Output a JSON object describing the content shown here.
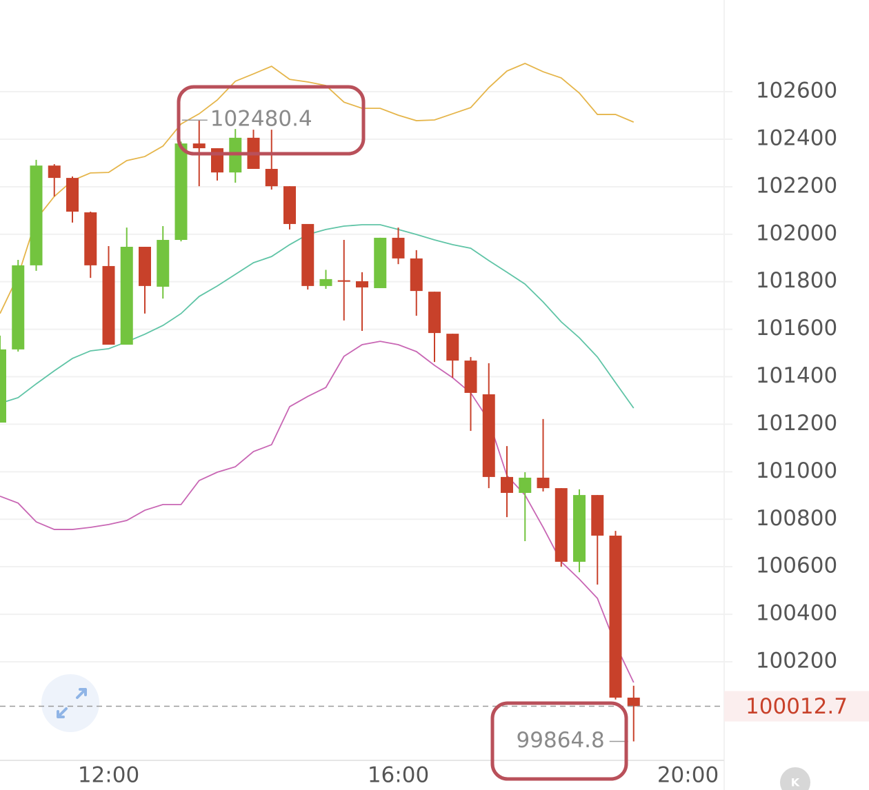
{
  "chart_data": {
    "type": "candlestick",
    "x": [
      10.5,
      10.75,
      11,
      11.25,
      11.5,
      11.75,
      12,
      12.25,
      12.5,
      12.75,
      13,
      13.25,
      13.5,
      13.75,
      14,
      14.25,
      14.5,
      14.75,
      15,
      15.25,
      15.5,
      15.75,
      16,
      16.25,
      16.5,
      16.75,
      17,
      17.25,
      17.5,
      17.75,
      18,
      18.25,
      18.5,
      18.75,
      19,
      19.25
    ],
    "open": [
      101207,
      101515,
      101869,
      102289,
      102237,
      102092,
      101866,
      101535,
      101947,
      101779,
      101976,
      102382,
      102362,
      102260,
      102406,
      102275,
      102202,
      102043,
      101782,
      101806,
      101802,
      101773,
      101985,
      101898,
      101758,
      101581,
      101468,
      101326,
      100978,
      100911,
      100975,
      100931,
      100621,
      100902,
      100731,
      100049
    ],
    "high": [
      101573,
      101892,
      102313,
      102295,
      102243,
      102095,
      101950,
      102028,
      101947,
      102034,
      102390,
      102480.4,
      102362,
      102443,
      102440,
      102440,
      102202,
      102043,
      101850,
      101976,
      101840,
      101985,
      102028,
      101933,
      101758,
      101581,
      101483,
      101457,
      101108,
      100998,
      101222,
      100931,
      100926,
      100902,
      100751,
      100099
    ],
    "low": [
      101207,
      101506,
      101846,
      102159,
      102049,
      101816,
      101535,
      101535,
      101666,
      101729,
      101970,
      102202,
      102226,
      102217,
      102275,
      102188,
      102020,
      101767,
      101770,
      101637,
      101593,
      101773,
      101874,
      101657,
      101462,
      101396,
      101172,
      100931,
      100809,
      100708,
      100917,
      100600,
      100577,
      100525,
      100041,
      99864.8
    ],
    "close": [
      101515,
      101869,
      102289,
      102237,
      102095,
      101869,
      101535,
      101947,
      101782,
      101976,
      102382,
      102362,
      102260,
      102406,
      102275,
      102202,
      102043,
      101782,
      101811,
      101800,
      101776,
      101985,
      101898,
      101761,
      101584,
      101468,
      101332,
      100978,
      100911,
      100975,
      100931,
      100621,
      100902,
      100731,
      100049,
      100012.7
    ],
    "up_color": "#73c43f",
    "down_color": "#c8412a",
    "bands": [
      {
        "color": "#e5b54a",
        "values": [
          101666,
          101825,
          102063,
          102159,
          102226,
          102258,
          102260,
          102310,
          102327,
          102371,
          102464,
          102507,
          102565,
          102644,
          102675,
          102707,
          102652,
          102641,
          102626,
          102556,
          102530,
          102530,
          102501,
          102478,
          102481,
          102507,
          102533,
          102617,
          102687,
          102719,
          102684,
          102658,
          102594,
          102504,
          102504,
          102472
        ]
      },
      {
        "color": "#5fc4a6",
        "values": [
          101288,
          101312,
          101370,
          101425,
          101477,
          101509,
          101518,
          101547,
          101579,
          101616,
          101666,
          101738,
          101782,
          101831,
          101880,
          101906,
          101956,
          101999,
          102020,
          102034,
          102040,
          102040,
          102020,
          101999,
          101976,
          101956,
          101941,
          101889,
          101840,
          101790,
          101715,
          101631,
          101564,
          101483,
          101375,
          101268
        ]
      },
      {
        "color": "#c866b4",
        "values": [
          100897,
          100868,
          100789,
          100757,
          100757,
          100766,
          100778,
          100795,
          100838,
          100862,
          100862,
          100963,
          100998,
          101021,
          101085,
          101114,
          101274,
          101317,
          101355,
          101486,
          101535,
          101549,
          101535,
          101506,
          101448,
          101396,
          101332,
          101216,
          100984,
          100902,
          100766,
          100621,
          100548,
          100467,
          100273,
          100113
        ]
      }
    ],
    "ylim": [
      99785,
      102986
    ],
    "yticks": [
      100200,
      100400,
      100600,
      100800,
      101000,
      101200,
      101400,
      101600,
      101800,
      102000,
      102200,
      102400,
      102600
    ],
    "xlim": [
      10.5,
      20.5
    ],
    "xticks": [
      {
        "value": 12,
        "label": "12:00"
      },
      {
        "value": 16,
        "label": "16:00"
      },
      {
        "value": 20,
        "label": "20:00"
      }
    ],
    "grid": true
  }
}
